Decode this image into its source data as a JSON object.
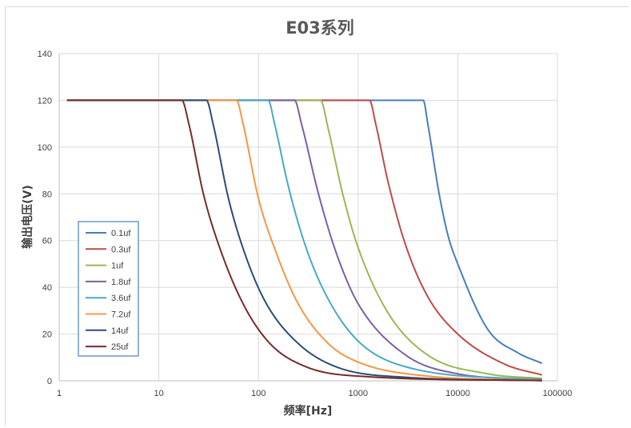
{
  "chart_data": {
    "type": "line",
    "title": "E03系列",
    "xlabel": "频率[Hz]",
    "ylabel": "输出电压(V)",
    "x_scale": "log",
    "xlim": [
      1,
      100000
    ],
    "ylim": [
      0,
      140
    ],
    "x_ticks": [
      1,
      10,
      100,
      1000,
      10000,
      100000
    ],
    "x_tick_labels": [
      "1",
      "10",
      "100",
      "1000",
      "10000",
      "100000"
    ],
    "y_ticks": [
      0,
      20,
      40,
      60,
      80,
      100,
      120,
      140
    ],
    "y_tick_labels": [
      "0",
      "20",
      "40",
      "60",
      "80",
      "100",
      "120",
      "140"
    ],
    "grid": true,
    "legend_position": "left",
    "series": [
      {
        "name": "0.1uf",
        "color": "#4a7ebb",
        "cutoff_hz": 4500,
        "points": [
          [
            1.2,
            120
          ],
          [
            4500,
            120
          ],
          [
            5000,
            110
          ],
          [
            6500,
            80
          ],
          [
            8000,
            62
          ],
          [
            10000,
            50
          ],
          [
            20000,
            22
          ],
          [
            40000,
            12
          ],
          [
            70000,
            7.5
          ]
        ]
      },
      {
        "name": "0.3uf",
        "color": "#be4b48",
        "cutoff_hz": 1300,
        "points": [
          [
            1.2,
            120
          ],
          [
            1300,
            120
          ],
          [
            1500,
            110
          ],
          [
            2000,
            85
          ],
          [
            3000,
            58
          ],
          [
            5000,
            36
          ],
          [
            10000,
            20
          ],
          [
            30000,
            7
          ],
          [
            70000,
            2.5
          ]
        ]
      },
      {
        "name": "1uf",
        "color": "#98b954",
        "cutoff_hz": 420,
        "points": [
          [
            1.2,
            120
          ],
          [
            420,
            120
          ],
          [
            500,
            108
          ],
          [
            700,
            80
          ],
          [
            1000,
            57
          ],
          [
            2000,
            29
          ],
          [
            5000,
            11
          ],
          [
            20000,
            3
          ],
          [
            70000,
            1
          ]
        ]
      },
      {
        "name": "1.8uf",
        "color": "#7d60a0",
        "cutoff_hz": 230,
        "points": [
          [
            1.2,
            120
          ],
          [
            230,
            120
          ],
          [
            270,
            110
          ],
          [
            400,
            80
          ],
          [
            600,
            55
          ],
          [
            1000,
            33
          ],
          [
            3000,
            11
          ],
          [
            10000,
            3
          ],
          [
            70000,
            0.5
          ]
        ]
      },
      {
        "name": "3.6uf",
        "color": "#46aac5",
        "cutoff_hz": 125,
        "points": [
          [
            1.2,
            120
          ],
          [
            125,
            120
          ],
          [
            145,
            110
          ],
          [
            200,
            83
          ],
          [
            300,
            57
          ],
          [
            500,
            35
          ],
          [
            1000,
            17
          ],
          [
            3000,
            6
          ],
          [
            70000,
            0.3
          ]
        ]
      },
      {
        "name": "7.2uf",
        "color": "#f79646",
        "cutoff_hz": 60,
        "points": [
          [
            1.2,
            120
          ],
          [
            60,
            120
          ],
          [
            70,
            110
          ],
          [
            100,
            78
          ],
          [
            150,
            55
          ],
          [
            250,
            33
          ],
          [
            500,
            16
          ],
          [
            1000,
            8
          ],
          [
            5000,
            2
          ],
          [
            70000,
            0.2
          ]
        ]
      },
      {
        "name": "14uf",
        "color": "#2c4d75",
        "cutoff_hz": 30,
        "points": [
          [
            1.2,
            120
          ],
          [
            30,
            120
          ],
          [
            35,
            110
          ],
          [
            50,
            78
          ],
          [
            75,
            53
          ],
          [
            120,
            33
          ],
          [
            250,
            16
          ],
          [
            600,
            6
          ],
          [
            3000,
            1.5
          ],
          [
            70000,
            0.1
          ]
        ]
      },
      {
        "name": "25uf",
        "color": "#772c2a",
        "cutoff_hz": 17,
        "points": [
          [
            1.2,
            120
          ],
          [
            17,
            120
          ],
          [
            20,
            110
          ],
          [
            28,
            80
          ],
          [
            40,
            58
          ],
          [
            70,
            33
          ],
          [
            130,
            16
          ],
          [
            300,
            6
          ],
          [
            1000,
            2
          ],
          [
            70000,
            0.1
          ]
        ]
      }
    ]
  }
}
